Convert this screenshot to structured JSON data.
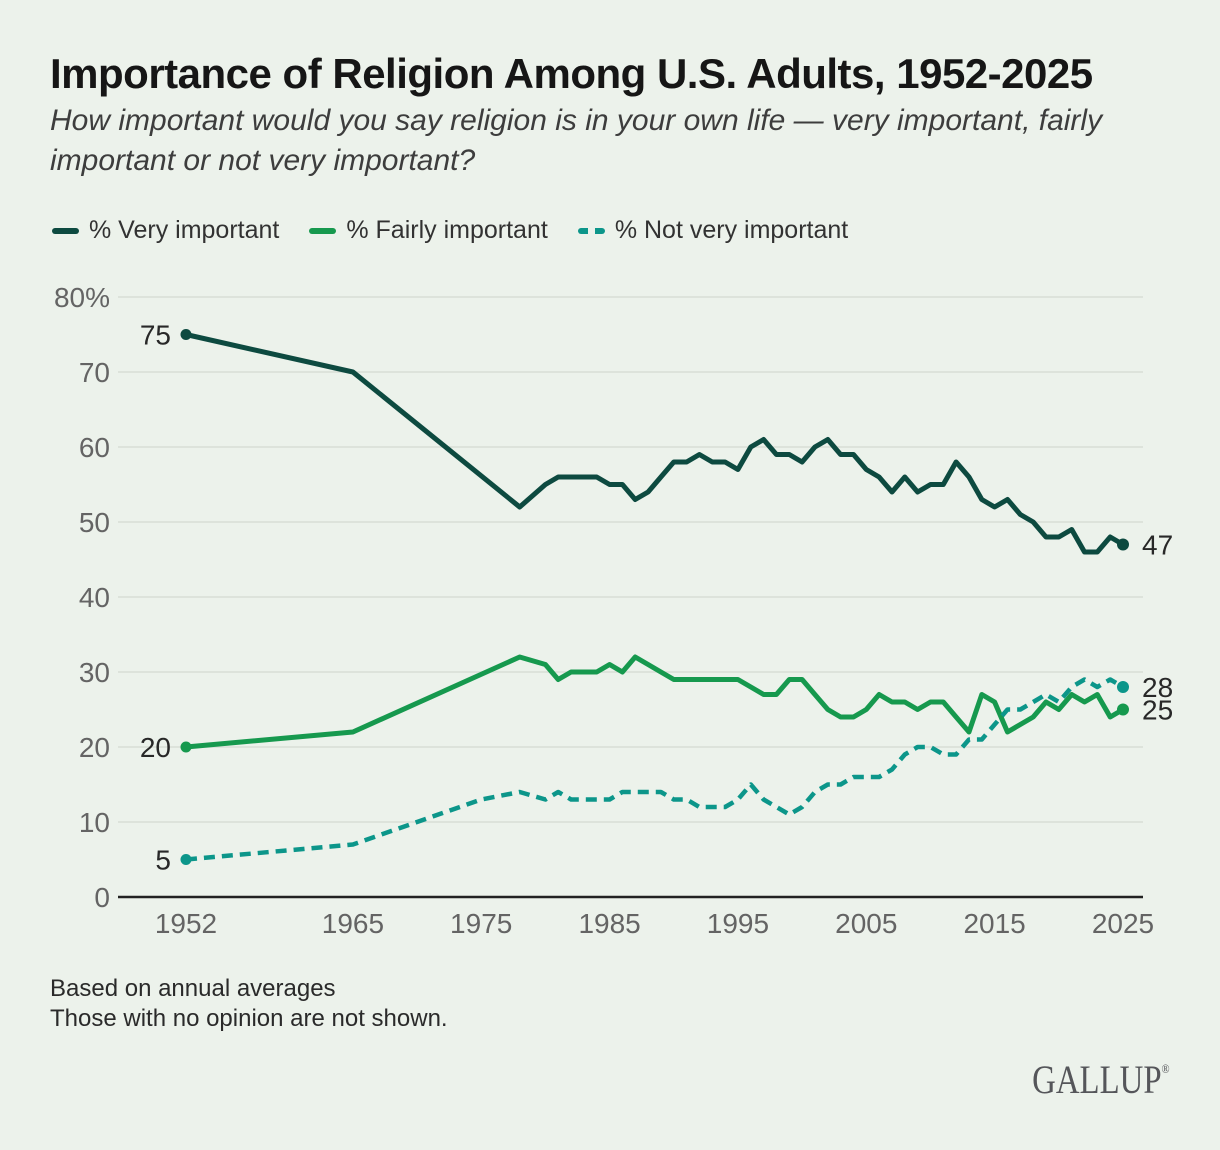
{
  "header": {
    "title": "Importance of Religion Among U.S. Adults, 1952-2025",
    "subtitle": "How important would you say religion is in your own life — very important, fairly important or not very important?"
  },
  "theme": {
    "background": "#ECF2EB",
    "gridline_color": "#D8DED6",
    "axis_color": "#222222"
  },
  "chart_data": {
    "type": "line",
    "title": "Importance of Religion Among U.S. Adults, 1952-2025",
    "xlabel": "",
    "ylabel": "%",
    "grid": true,
    "legend_position": "top",
    "x_axis": {
      "min": 1952,
      "max": 2025,
      "ticks": [
        1952,
        1965,
        1975,
        1985,
        1995,
        2005,
        2015,
        2025
      ]
    },
    "y_axis": {
      "min": 0,
      "max": 80,
      "ticks": [
        {
          "value": 80,
          "label": "80%"
        },
        {
          "value": 70,
          "label": "70"
        },
        {
          "value": 60,
          "label": "60"
        },
        {
          "value": 50,
          "label": "50"
        },
        {
          "value": 40,
          "label": "40"
        },
        {
          "value": 30,
          "label": "30"
        },
        {
          "value": 20,
          "label": "20"
        },
        {
          "value": 10,
          "label": "10"
        },
        {
          "value": 0,
          "label": "0"
        }
      ]
    },
    "series": [
      {
        "id": "very-important",
        "name": "% Very important",
        "color": "#0D4A40",
        "style": "solid",
        "start_label": "75",
        "end_label": "47",
        "years": [
          1952,
          1965,
          1978,
          1980,
          1981,
          1982,
          1983,
          1984,
          1985,
          1986,
          1987,
          1988,
          1989,
          1990,
          1991,
          1992,
          1993,
          1994,
          1995,
          1996,
          1997,
          1998,
          1999,
          2000,
          2001,
          2002,
          2003,
          2004,
          2005,
          2006,
          2007,
          2008,
          2009,
          2010,
          2011,
          2012,
          2013,
          2014,
          2015,
          2016,
          2017,
          2018,
          2019,
          2020,
          2021,
          2022,
          2023,
          2024,
          2025
        ],
        "values": [
          75,
          70,
          52,
          55,
          56,
          56,
          56,
          56,
          55,
          55,
          53,
          54,
          56,
          58,
          58,
          59,
          58,
          58,
          57,
          60,
          61,
          59,
          59,
          58,
          60,
          61,
          59,
          59,
          57,
          56,
          54,
          56,
          54,
          55,
          55,
          58,
          56,
          53,
          52,
          53,
          51,
          50,
          48,
          48,
          49,
          46,
          46,
          48,
          47
        ]
      },
      {
        "id": "fairly-important",
        "name": "% Fairly important",
        "color": "#16994E",
        "style": "solid",
        "start_label": "20",
        "end_label": "25",
        "years": [
          1952,
          1965,
          1978,
          1980,
          1981,
          1982,
          1983,
          1984,
          1985,
          1986,
          1987,
          1988,
          1989,
          1990,
          1991,
          1992,
          1993,
          1994,
          1995,
          1996,
          1997,
          1998,
          1999,
          2000,
          2001,
          2002,
          2003,
          2004,
          2005,
          2006,
          2007,
          2008,
          2009,
          2010,
          2011,
          2012,
          2013,
          2014,
          2015,
          2016,
          2017,
          2018,
          2019,
          2020,
          2021,
          2022,
          2023,
          2024,
          2025
        ],
        "values": [
          20,
          22,
          32,
          31,
          29,
          30,
          30,
          30,
          31,
          30,
          32,
          31,
          30,
          29,
          29,
          29,
          29,
          29,
          29,
          28,
          27,
          27,
          29,
          29,
          27,
          25,
          24,
          24,
          25,
          27,
          26,
          26,
          25,
          26,
          26,
          24,
          22,
          27,
          26,
          22,
          23,
          24,
          26,
          25,
          27,
          26,
          27,
          24,
          25
        ]
      },
      {
        "id": "not-very-important",
        "name": "% Not very important",
        "color": "#0C968A",
        "style": "dashed",
        "start_label": "5",
        "end_label": "28",
        "years": [
          1952,
          1965,
          1975,
          1978,
          1980,
          1981,
          1982,
          1983,
          1984,
          1985,
          1986,
          1987,
          1988,
          1989,
          1990,
          1991,
          1992,
          1993,
          1994,
          1995,
          1996,
          1997,
          1998,
          1999,
          2000,
          2001,
          2002,
          2003,
          2004,
          2005,
          2006,
          2007,
          2008,
          2009,
          2010,
          2011,
          2012,
          2013,
          2014,
          2015,
          2016,
          2017,
          2018,
          2019,
          2020,
          2021,
          2022,
          2023,
          2024,
          2025
        ],
        "values": [
          5,
          7,
          13,
          14,
          13,
          14,
          13,
          13,
          13,
          13,
          14,
          14,
          14,
          14,
          13,
          13,
          12,
          12,
          12,
          13,
          15,
          13,
          12,
          11,
          12,
          14,
          15,
          15,
          16,
          16,
          16,
          17,
          19,
          20,
          20,
          19,
          19,
          21,
          21,
          23,
          25,
          25,
          26,
          27,
          26,
          28,
          29,
          28,
          29,
          28
        ]
      }
    ]
  },
  "footer": {
    "note_line1": "Based on annual averages",
    "note_line2": "Those with no opinion are not shown.",
    "brand": "GALLUP",
    "brand_mark": "®"
  }
}
